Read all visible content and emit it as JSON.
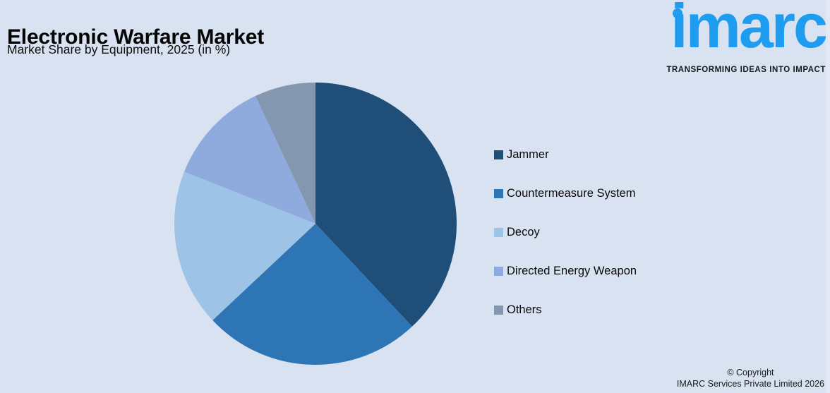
{
  "page": {
    "background": "#D9E2F1"
  },
  "header": {
    "title": "Electronic Warfare Market",
    "subtitle": "Market Share by Equipment, 2025 (in %)"
  },
  "branding": {
    "logo_text": "imarc",
    "tagline": "TRANSFORMING IDEAS INTO IMPACT",
    "logo_color": "#1E9CF0"
  },
  "chart_data": {
    "type": "pie",
    "title": "Electronic Warfare Market",
    "subtitle": "Market Share by Equipment, 2025 (in %)",
    "labels": [
      "Jammer",
      "Countermeasure System",
      "Decoy",
      "Directed Energy Weapon",
      "Others"
    ],
    "values": [
      38,
      25,
      18,
      12,
      7
    ],
    "colors": [
      "#1F4E79",
      "#2E75B6",
      "#9DC3E6",
      "#8FAADC",
      "#8497B0"
    ],
    "start_angle_deg": -90,
    "direction": "clockwise",
    "data_labels_shown": false,
    "legend_position": "right"
  },
  "footer": {
    "line1": "© Copyright",
    "line2": "IMARC Services Private Limited 2026"
  }
}
